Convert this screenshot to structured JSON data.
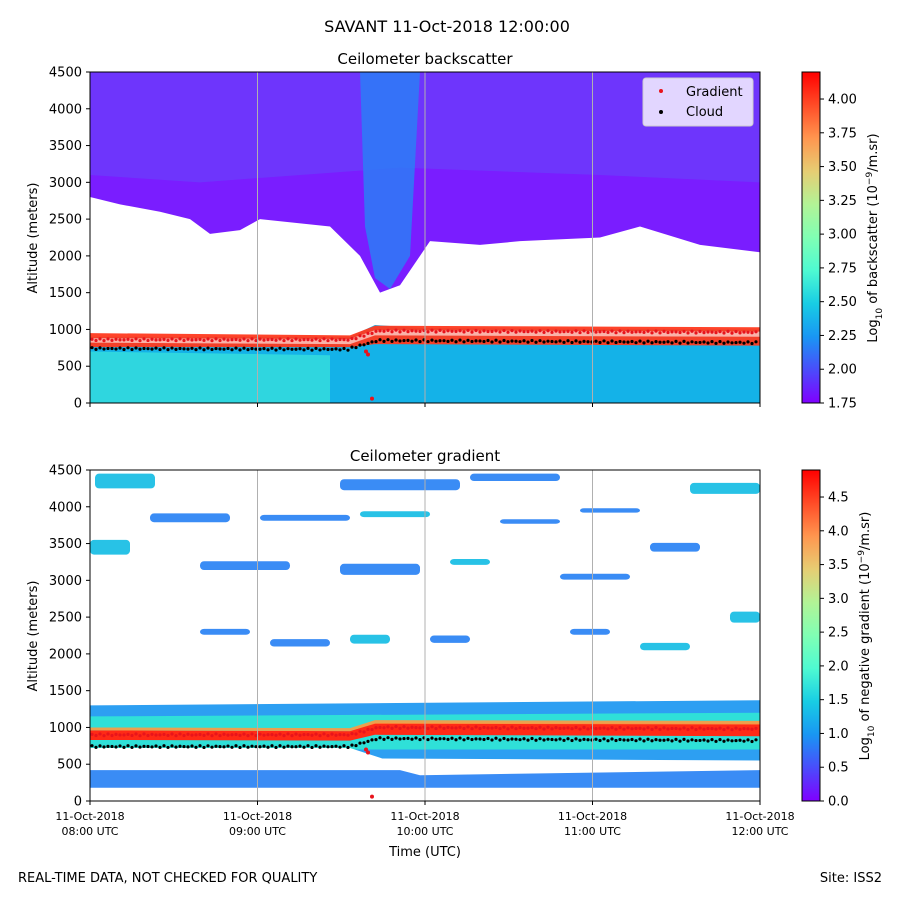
{
  "figure_title": "SAVANT 11-Oct-2018 12:00:00",
  "footer_left": "REAL-TIME DATA, NOT CHECKED FOR QUALITY",
  "footer_right": "Site: ISS2",
  "colors": {
    "gradient_marker": "#e8141c",
    "cloud_marker": "#000000",
    "colormap": [
      "#8000ff",
      "#4a4cfb",
      "#1996f3",
      "#18cde4",
      "#4efad2",
      "#80ffb4",
      "#b2f396",
      "#e6cd73",
      "#ff964f",
      "#ff4c27",
      "#ff0000"
    ]
  },
  "chart_data": [
    {
      "type": "heatmap",
      "title": "Ceilometer backscatter",
      "ylabel": "Altitude (meters)",
      "ylim": [
        0,
        4500
      ],
      "yticks": [
        0,
        500,
        1000,
        1500,
        2000,
        2500,
        3000,
        3500,
        4000,
        4500
      ],
      "xlabel": "",
      "xticks": [
        "08:00",
        "09:00",
        "10:00",
        "11:00",
        "12:00"
      ],
      "xtick_labels": [],
      "grid": "vertical lines at hourly ticks",
      "legend": {
        "placement": "upper right",
        "entries": [
          "Gradient",
          "Cloud"
        ]
      },
      "colorbar": {
        "label": "Log",
        "label_sub": "10",
        "label_rest": " of backscatter (10",
        "label_sup": "−9",
        "label_end": "/m.sr)",
        "range": [
          1.75,
          4.2
        ],
        "ticks": [
          "1.75",
          "2.00",
          "2.25",
          "2.50",
          "2.75",
          "3.00",
          "3.25",
          "3.50",
          "3.75",
          "4.00"
        ]
      },
      "layers": [
        {
          "name": "aerosol layer",
          "value": 2.4,
          "bottom": 0,
          "top_start": 720,
          "top_end": 820
        },
        {
          "name": "upper noise region",
          "value": 1.9,
          "bottom": 2100,
          "top": 4500
        },
        {
          "name": "cloud top",
          "value": 4.2,
          "altitude_start": 850,
          "altitude_end": 980
        }
      ],
      "series": [
        {
          "name": "Cloud",
          "marker": "black dots",
          "altitude_start": 740,
          "altitude_mid": 730,
          "altitude_after_jump": 850,
          "altitude_end": 820
        },
        {
          "name": "Gradient",
          "marker": "red dots",
          "altitude_start": 860,
          "altitude_after_jump": 980,
          "altitude_end": 960
        }
      ]
    },
    {
      "type": "heatmap",
      "title": "Ceilometer gradient",
      "ylabel": "Altitude (meters)",
      "ylim": [
        0,
        4500
      ],
      "yticks": [
        0,
        500,
        1000,
        1500,
        2000,
        2500,
        3000,
        3500,
        4000,
        4500
      ],
      "xlabel": "Time (UTC)",
      "xticks": [
        "08:00",
        "09:00",
        "10:00",
        "11:00",
        "12:00"
      ],
      "xtick_labels": [
        {
          "date": "11-Oct-2018",
          "time": "08:00 UTC"
        },
        {
          "date": "11-Oct-2018",
          "time": "09:00 UTC"
        },
        {
          "date": "11-Oct-2018",
          "time": "10:00 UTC"
        },
        {
          "date": "11-Oct-2018",
          "time": "11:00 UTC"
        },
        {
          "date": "11-Oct-2018",
          "time": "12:00 UTC"
        }
      ],
      "grid": "vertical lines at hourly ticks",
      "colorbar": {
        "label": "Log",
        "label_sub": "10",
        "label_rest": " of negative gradient (10",
        "label_sup": "−9",
        "label_end": "/m.sr)",
        "range": [
          0.0,
          4.9
        ],
        "ticks": [
          "0.0",
          "0.5",
          "1.0",
          "1.5",
          "2.0",
          "2.5",
          "3.0",
          "3.5",
          "4.0",
          "4.5"
        ]
      },
      "layers": [
        {
          "name": "boundary layer band",
          "value": 1.3,
          "bottom": 550,
          "top": 1350
        },
        {
          "name": "strong gradient",
          "value": 4.6,
          "altitude_start": 880,
          "altitude_end": 1000
        },
        {
          "name": "lower band",
          "value": 1.1,
          "bottom": 180,
          "top": 420
        }
      ],
      "series": [
        {
          "name": "Cloud",
          "marker": "black dots",
          "altitude_start": 740,
          "altitude_after_jump": 850,
          "altitude_end": 820
        },
        {
          "name": "Gradient",
          "marker": "red dots",
          "altitude_start": 900,
          "altitude_after_jump": 1000,
          "altitude_end": 980
        }
      ]
    }
  ]
}
